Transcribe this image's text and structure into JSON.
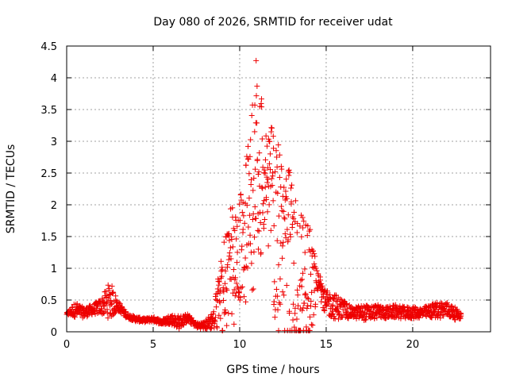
{
  "chart_data": {
    "type": "scatter",
    "title": "Day 080 of 2026, SRMTID for receiver udat",
    "xlabel": "GPS time / hours",
    "ylabel": "SRMTID / TECUs",
    "xlim": [
      0,
      24.5
    ],
    "ylim": [
      0,
      4.5
    ],
    "xticks": [
      0,
      5,
      10,
      15,
      20
    ],
    "yticks": [
      0,
      0.5,
      1,
      1.5,
      2,
      2.5,
      3,
      3.5,
      4,
      4.5
    ],
    "xtick_labels": [
      "0",
      "5",
      "10",
      "15",
      "20"
    ],
    "ytick_labels": [
      "0",
      "0.5",
      "1",
      "1.5",
      "2",
      "2.5",
      "3",
      "3.5",
      "4",
      "4.5"
    ],
    "grid": true,
    "marker": "+",
    "series": [
      {
        "name": "SRMTID",
        "color": "#ee0000",
        "envelope_hours": [
          0,
          0.5,
          1,
          1.5,
          2,
          2.5,
          3,
          3.5,
          4,
          4.5,
          5,
          5.5,
          6,
          6.5,
          7,
          7.5,
          8,
          8.5,
          9,
          9.5,
          10,
          10.5,
          11,
          11.5,
          12,
          12.5,
          13,
          13.5,
          14,
          14.5,
          15,
          15.5,
          16,
          16.5,
          17,
          17.5,
          18,
          18.5,
          19,
          19.5,
          20,
          20.5,
          21,
          21.5,
          22,
          22.5,
          22.8
        ],
        "envelope_median": [
          0.28,
          0.35,
          0.3,
          0.35,
          0.4,
          0.5,
          0.4,
          0.25,
          0.2,
          0.18,
          0.2,
          0.15,
          0.2,
          0.15,
          0.22,
          0.1,
          0.1,
          0.2,
          0.6,
          0.9,
          1.1,
          1.6,
          2.5,
          2.2,
          1.6,
          1.0,
          0.7,
          0.6,
          0.6,
          0.8,
          0.45,
          0.4,
          0.35,
          0.3,
          0.3,
          0.3,
          0.32,
          0.3,
          0.32,
          0.3,
          0.3,
          0.3,
          0.32,
          0.35,
          0.35,
          0.28,
          0.25
        ],
        "envelope_max": [
          0.3,
          0.5,
          0.4,
          0.45,
          0.55,
          0.88,
          0.5,
          0.3,
          0.25,
          0.22,
          0.25,
          0.2,
          0.3,
          0.28,
          0.3,
          0.15,
          0.18,
          0.4,
          1.3,
          2.1,
          2.1,
          3.0,
          4.27,
          3.3,
          3.3,
          2.6,
          2.55,
          1.9,
          1.8,
          1.0,
          0.7,
          0.65,
          0.55,
          0.4,
          0.45,
          0.45,
          0.45,
          0.42,
          0.45,
          0.42,
          0.42,
          0.4,
          0.45,
          0.52,
          0.5,
          0.4,
          0.3
        ],
        "peak": {
          "x": 10.95,
          "y": 4.27
        }
      }
    ]
  }
}
